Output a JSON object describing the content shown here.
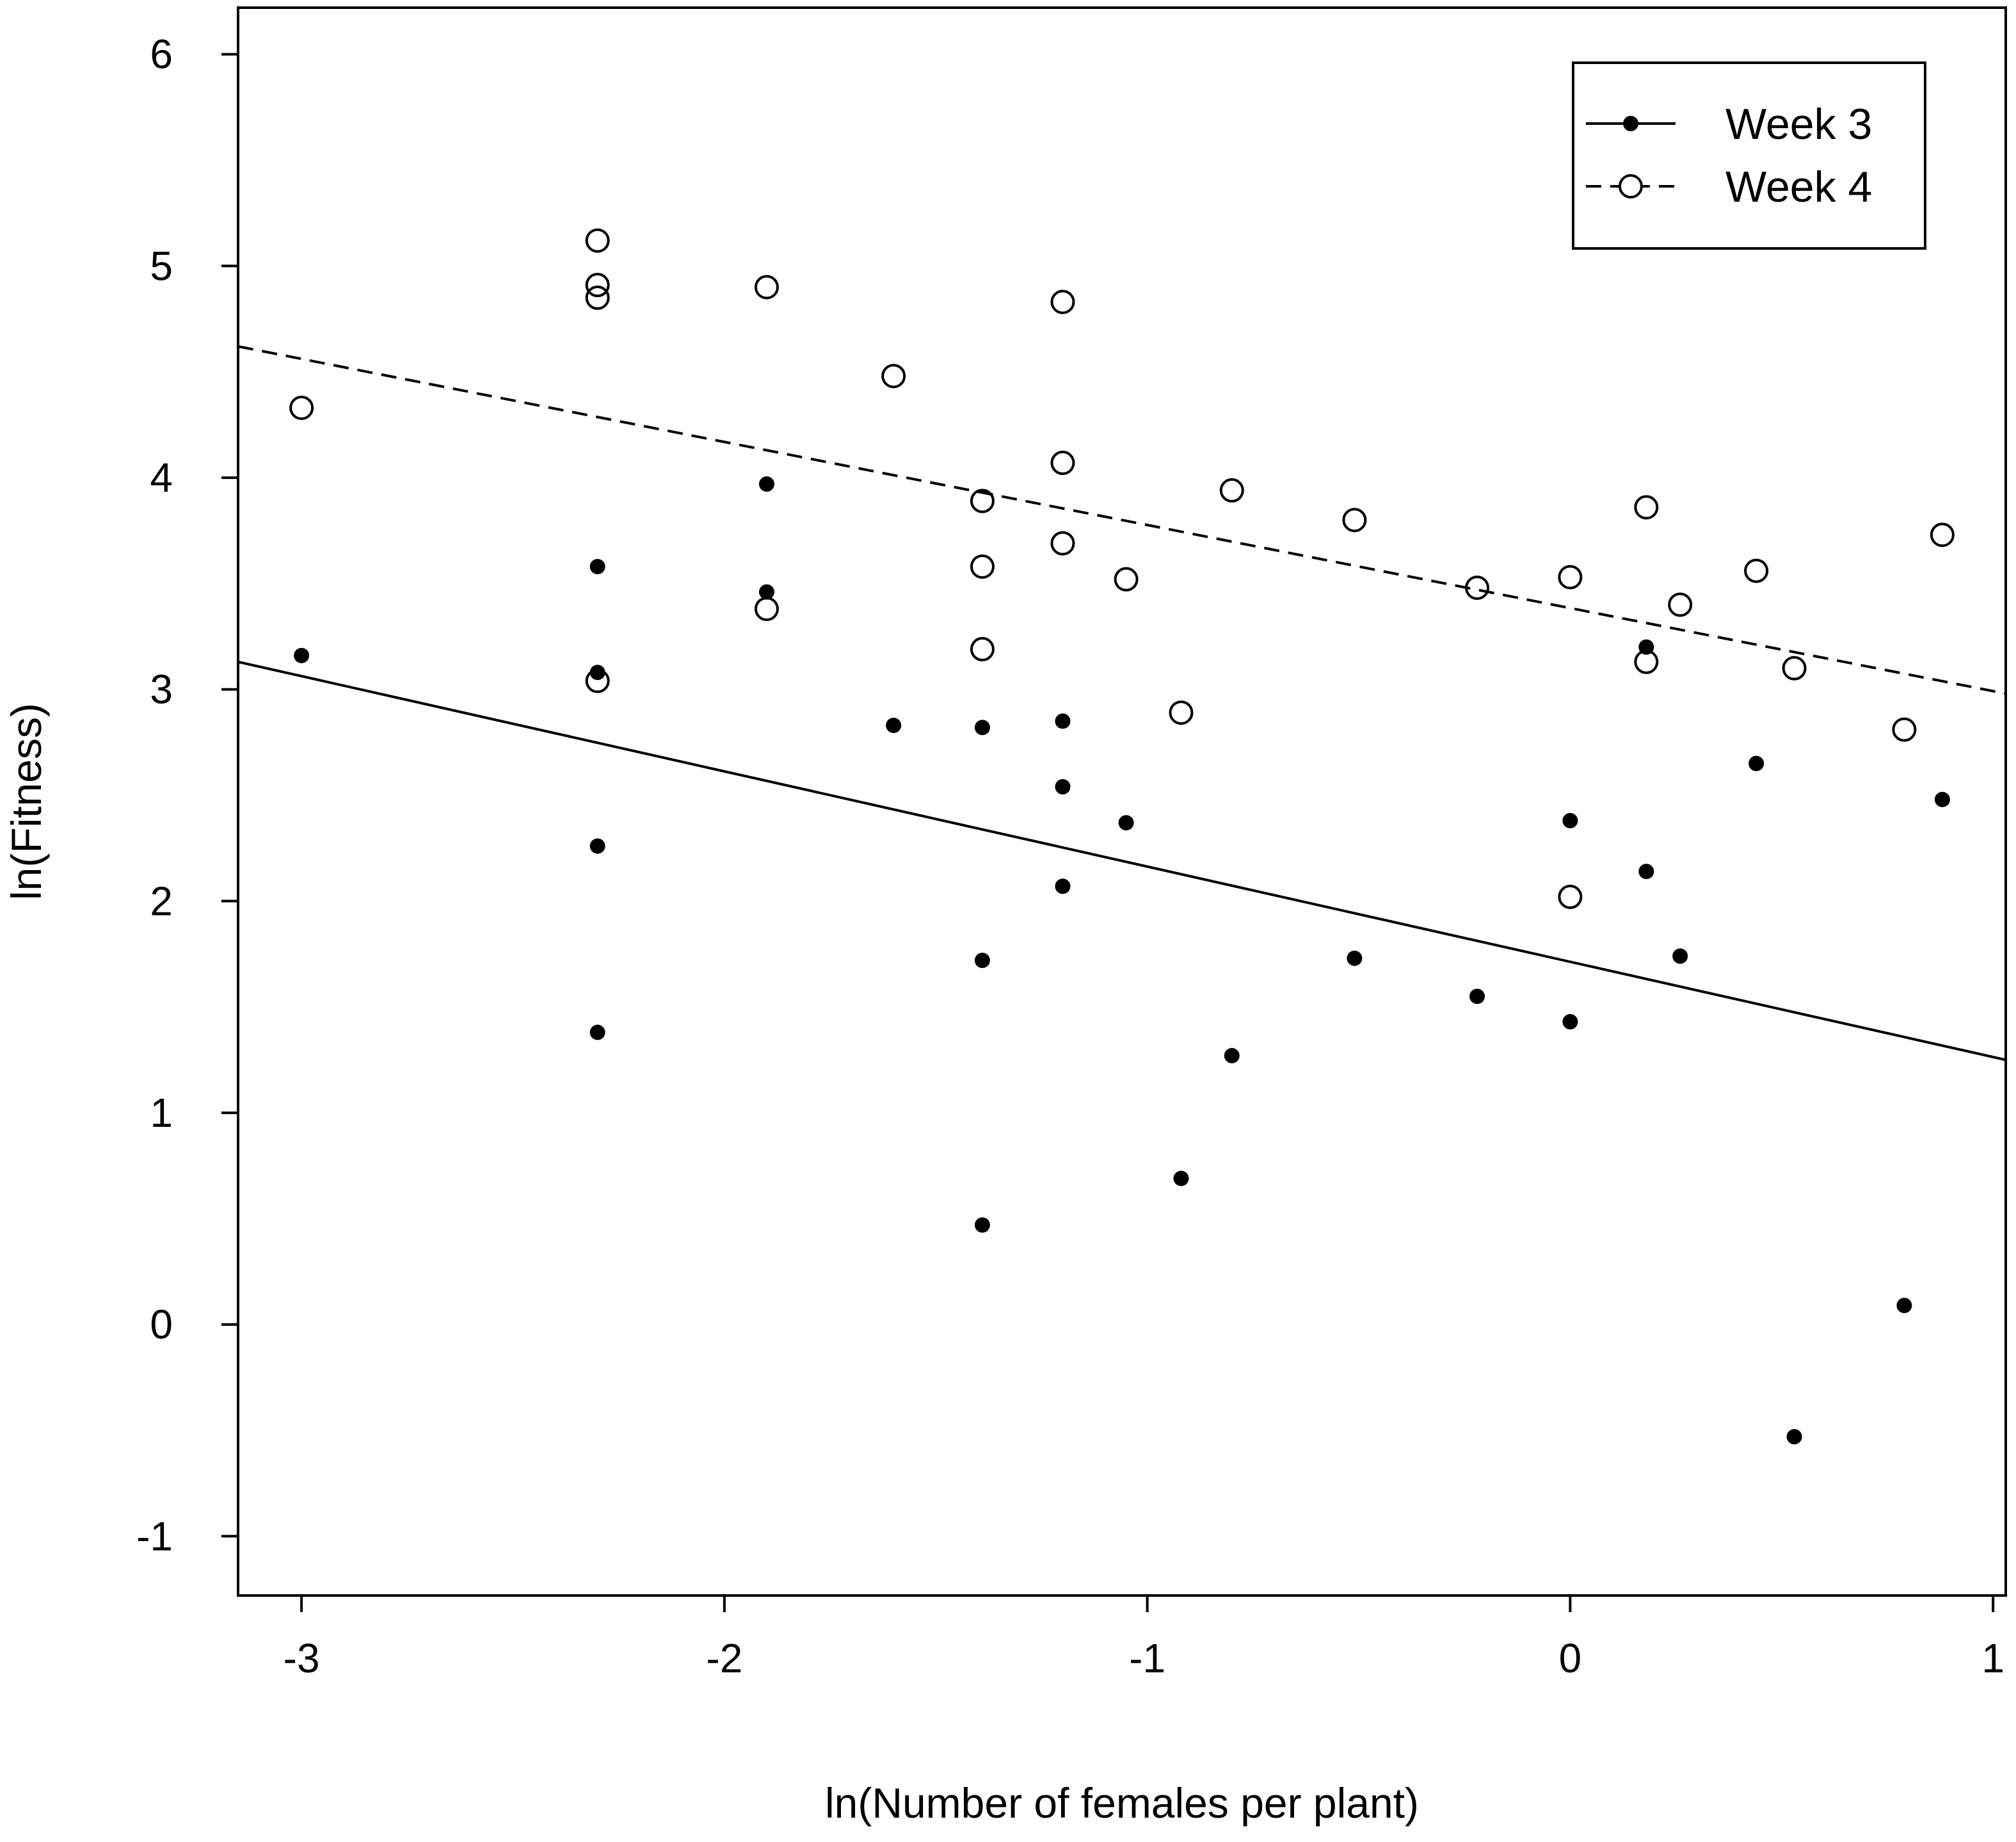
{
  "chart_data": {
    "type": "scatter",
    "title": "",
    "xlabel": "ln(Number of females per plant)",
    "ylabel": "ln(Fitness)",
    "xlim": [
      -3.15,
      1.03
    ],
    "ylim": [
      -1.28,
      6.22
    ],
    "xticks": [
      -3,
      -2,
      -1,
      0,
      1
    ],
    "yticks": [
      -1,
      0,
      1,
      2,
      3,
      4,
      5,
      6
    ],
    "xtick_labels": [
      "-3",
      "-2",
      "-1",
      "0",
      "1"
    ],
    "ytick_labels": [
      "-1",
      "0",
      "1",
      "2",
      "3",
      "4",
      "5",
      "6"
    ],
    "grid": false,
    "legend_position": "top-right",
    "series": [
      {
        "name": "Week 3",
        "marker": "filled-circle",
        "line_style": "solid",
        "color": "#000000",
        "points": [
          [
            -3.0,
            3.16
          ],
          [
            -2.3,
            3.58
          ],
          [
            -2.3,
            3.08
          ],
          [
            -2.3,
            2.26
          ],
          [
            -2.3,
            1.38
          ],
          [
            -1.9,
            3.97
          ],
          [
            -1.9,
            3.46
          ],
          [
            -1.6,
            2.83
          ],
          [
            -1.39,
            2.82
          ],
          [
            -1.39,
            1.72
          ],
          [
            -1.39,
            0.47
          ],
          [
            -1.2,
            2.85
          ],
          [
            -1.2,
            2.54
          ],
          [
            -1.2,
            2.07
          ],
          [
            -1.05,
            2.37
          ],
          [
            -0.92,
            0.69
          ],
          [
            -0.8,
            1.27
          ],
          [
            -0.51,
            1.73
          ],
          [
            -0.22,
            1.55
          ],
          [
            0.0,
            2.38
          ],
          [
            0.0,
            1.43
          ],
          [
            0.18,
            3.2
          ],
          [
            0.18,
            2.14
          ],
          [
            0.26,
            1.74
          ],
          [
            0.44,
            2.65
          ],
          [
            0.53,
            -0.53
          ],
          [
            0.79,
            0.09
          ],
          [
            0.88,
            2.48
          ]
        ],
        "fit_line": {
          "x": [
            -3.15,
            1.03
          ],
          "y": [
            3.13,
            1.25
          ]
        }
      },
      {
        "name": "Week 4",
        "marker": "open-circle",
        "line_style": "dashed",
        "color": "#000000",
        "points": [
          [
            -3.0,
            4.33
          ],
          [
            -2.3,
            5.12
          ],
          [
            -2.3,
            4.91
          ],
          [
            -2.3,
            4.85
          ],
          [
            -2.3,
            3.04
          ],
          [
            -1.9,
            4.9
          ],
          [
            -1.9,
            3.38
          ],
          [
            -1.6,
            4.48
          ],
          [
            -1.39,
            3.89
          ],
          [
            -1.39,
            3.58
          ],
          [
            -1.39,
            3.19
          ],
          [
            -1.2,
            4.83
          ],
          [
            -1.2,
            4.07
          ],
          [
            -1.2,
            3.69
          ],
          [
            -1.05,
            3.52
          ],
          [
            -0.92,
            2.89
          ],
          [
            -0.8,
            3.94
          ],
          [
            -0.51,
            3.8
          ],
          [
            -0.22,
            3.48
          ],
          [
            0.0,
            3.53
          ],
          [
            0.0,
            2.02
          ],
          [
            0.18,
            3.86
          ],
          [
            0.18,
            3.13
          ],
          [
            0.26,
            3.4
          ],
          [
            0.44,
            3.56
          ],
          [
            0.53,
            3.1
          ],
          [
            0.79,
            2.81
          ],
          [
            0.88,
            3.73
          ]
        ],
        "fit_line": {
          "x": [
            -3.15,
            1.03
          ],
          "y": [
            4.62,
            2.98
          ]
        }
      }
    ]
  }
}
